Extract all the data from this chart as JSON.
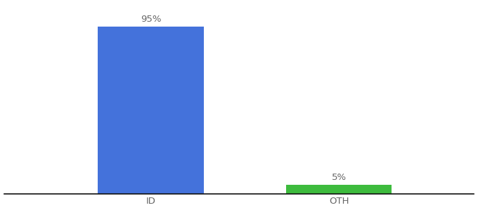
{
  "categories": [
    "ID",
    "OTH"
  ],
  "values": [
    95,
    5
  ],
  "bar_colors": [
    "#4472db",
    "#3dbb3d"
  ],
  "bar_labels": [
    "95%",
    "5%"
  ],
  "background_color": "#ffffff",
  "text_color": "#666666",
  "label_fontsize": 9.5,
  "tick_fontsize": 9.5,
  "ylim": [
    0,
    108
  ],
  "bar_width": 0.18,
  "figsize": [
    6.8,
    3.0
  ],
  "dpi": 100,
  "x_positions": [
    0.3,
    0.62
  ],
  "xlim": [
    0.05,
    0.85
  ]
}
